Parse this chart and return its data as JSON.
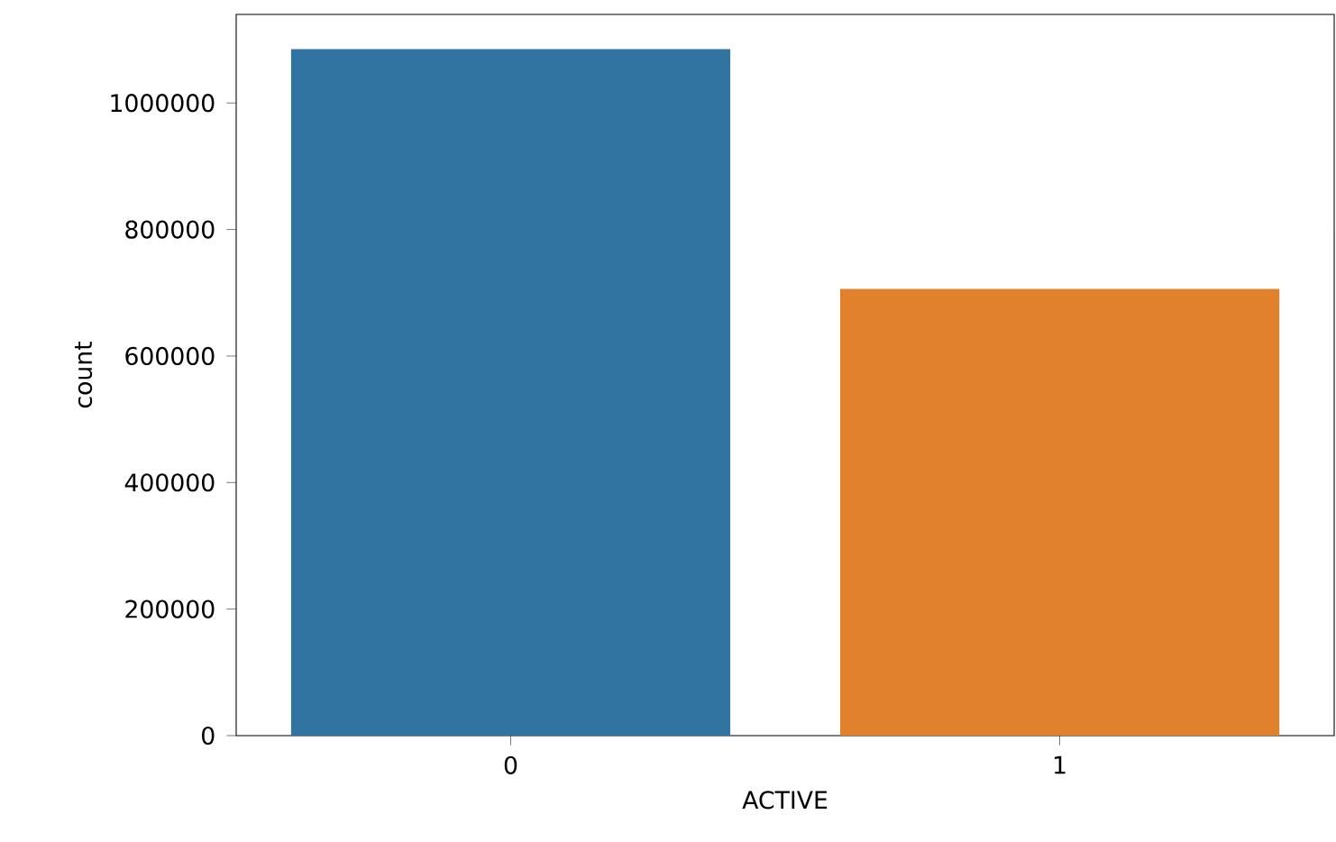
{
  "chart_data": {
    "type": "bar",
    "xlabel": "ACTIVE",
    "ylabel": "count",
    "categories": [
      "0",
      "1"
    ],
    "values": [
      1085000,
      706000
    ],
    "colors": [
      "#3274a1",
      "#e1812c"
    ],
    "ylim": [
      0,
      1140000
    ],
    "yticks": [
      0,
      200000,
      400000,
      600000,
      800000,
      1000000
    ],
    "grid": false
  }
}
